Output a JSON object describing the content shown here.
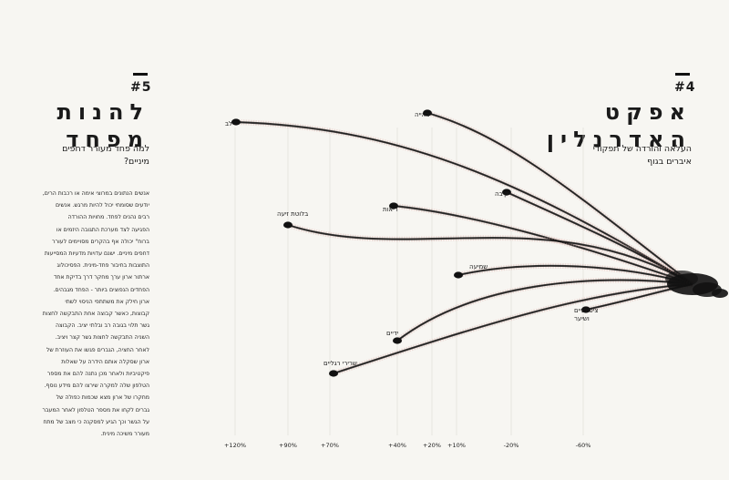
{
  "sections": {
    "s5": {
      "number": "#5",
      "title_lines": [
        "להנות",
        "מפחד"
      ],
      "subtitle_lines": [
        "למה פחד מעורר דחפים",
        "מיניים?"
      ],
      "body_lines": [
        "אנשים הנתונים במרוצי אימה או רכבות הרים,",
        "יודעים שסומחי יכול להיות מרגש. אנשים",
        "רבים נהנים לפחד. מחויות ההורדה",
        "הפגיעה לצד מערכת התגובה היזמים או",
        "ברוח\" יכולה אף בהקרים מסויימים לעורר",
        "דחפים מיניים. ישנם עדויות מדעיות המסייעות",
        "התוצבות בחיבור פחד-מינית. הפסיכולוג",
        "ארתור ארון ערך מחקר דרך בדיקת אחד",
        "הפחדים הנפוצים ביותר - הפחד מגבהים.",
        "ארון חילק את משתתפי הניסוי לשתי",
        "קבוצות, כאשר קבוצה אחת התבקשה לחצות",
        "גשר תלוי בגובה רב ובלתי יציב. הקבוצה",
        "השניה התבקשה לחצות גשר קצר ויציב.",
        "לאחר החציה, הגברים פגשו את העוזרת של",
        "ארון שסקלה אותם הידרה על שאלות",
        "פיקטיביות ולאחר מכן נתנה להם את מספר",
        "הטלפון שלה למקרה שירצו להם מידע נוסף.",
        "מחקרו של ארון מצא שכמות כפולה של",
        "גברים לקחו את מספר הטלפון לאחר המעבר",
        "על הגשר וכך הגיע למסקנה כי מצב של מתח",
        "מעורר משיכה מינית."
      ]
    },
    "s4": {
      "number": "#4",
      "title_lines": [
        "אפקט",
        "האדרנלין"
      ],
      "subtitle_lines": [
        "העלאה והורדה של תפקודי",
        "איברים בגוף"
      ]
    }
  },
  "chart_data": {
    "type": "diagram",
    "description": "change in body function under adrenaline",
    "branches": [
      {
        "label": "לב",
        "value": "+120%"
      },
      {
        "label": "ראייה",
        "value": "+20%"
      },
      {
        "label": "קיבה",
        "value": "-20%"
      },
      {
        "label": "ריאות",
        "value": "+40%"
      },
      {
        "label": "בלוטת זיעה",
        "value": "+90%"
      },
      {
        "label": "שמיעה",
        "value": "+10%"
      },
      {
        "label": "ידיים",
        "value": "+40%"
      },
      {
        "label": "שרירי רגליים",
        "value": "+70%"
      },
      {
        "label": "ציפורניים ושיער",
        "value": "-60%"
      }
    ],
    "axis_ticks": [
      "+120%",
      "+90%",
      "+70%",
      "+40%",
      "+20%",
      "+10%",
      "-20%",
      "-60%"
    ]
  },
  "colors": {
    "ink": "#111111",
    "pink": "#d8a8a4",
    "bg": "#f7f6f2"
  }
}
